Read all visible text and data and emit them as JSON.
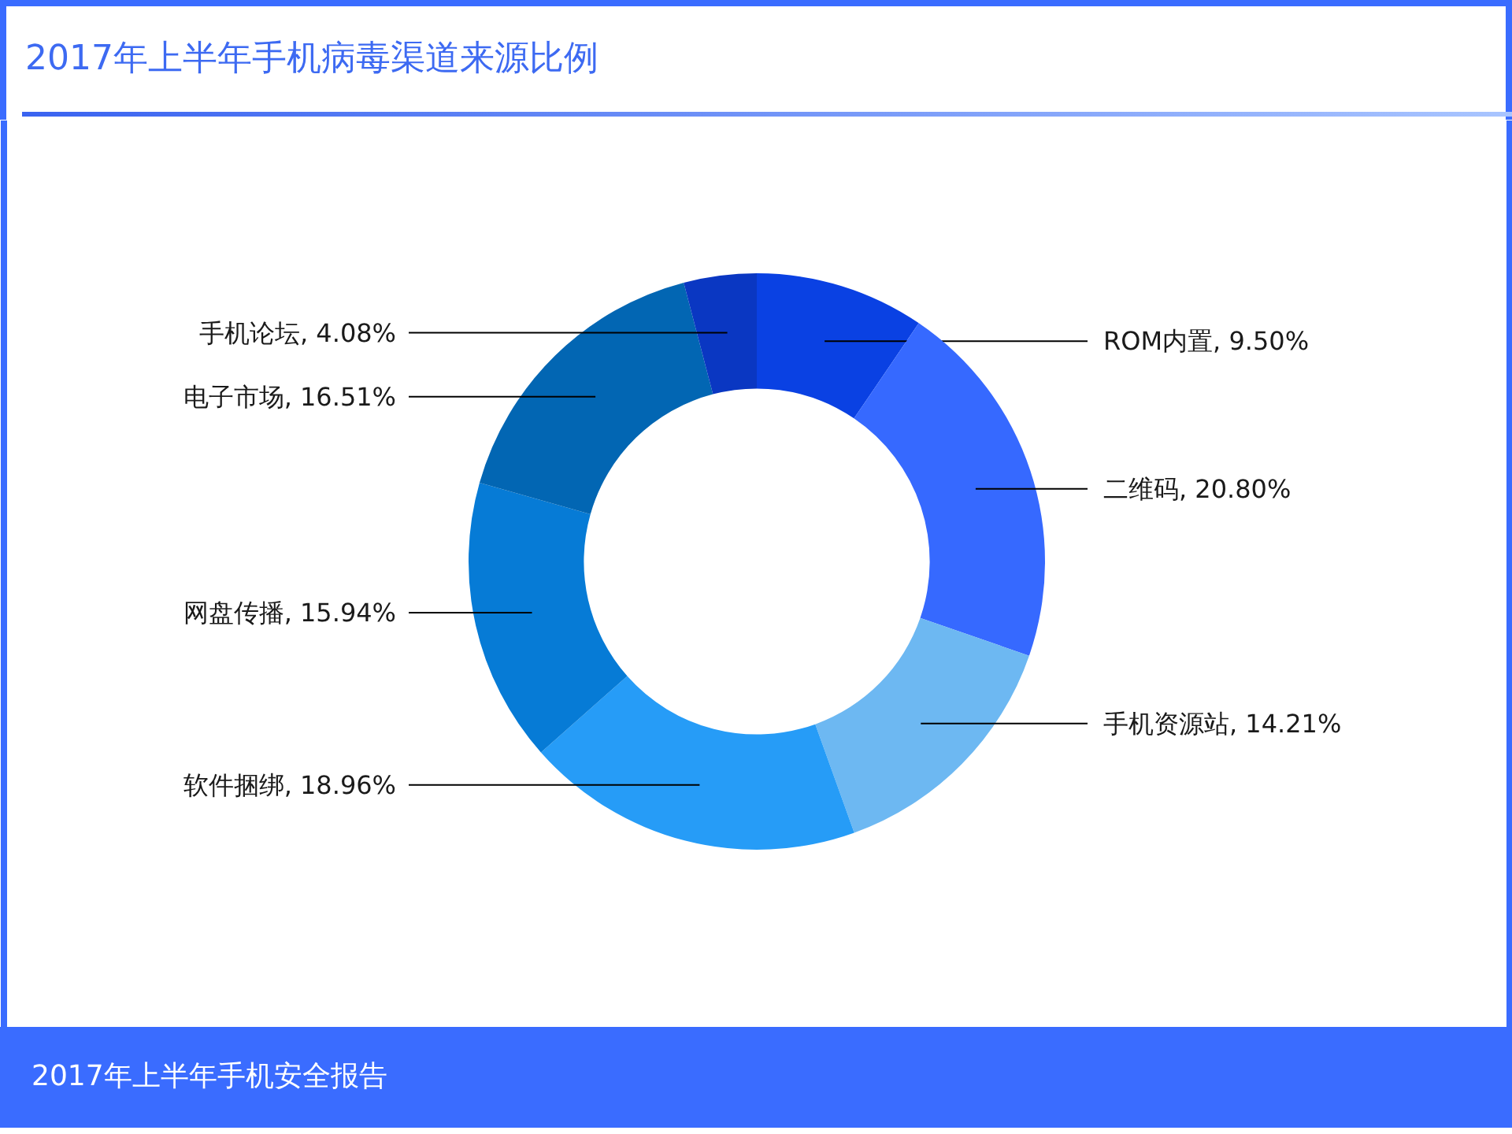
{
  "chart_data": {
    "type": "donut",
    "title": "2017年上半年手机病毒渠道来源比例",
    "categories": [
      "ROM内置",
      "二维码",
      "手机资源站",
      "软件捆绑",
      "网盘传播",
      "电子市场",
      "手机论坛"
    ],
    "values": [
      9.5,
      20.8,
      14.21,
      18.96,
      15.94,
      16.51,
      4.08
    ],
    "colors": [
      "#0a41e3",
      "#3669ff",
      "#6db8f2",
      "#269cf7",
      "#067bd6",
      "#0266b3",
      "#0a37c2"
    ],
    "value_labels": [
      "9.50%",
      "20.80%",
      "14.21%",
      "18.96%",
      "15.94%",
      "16.51%",
      "4.08%"
    ],
    "annotations": [
      "2017年上半年手机安全报告"
    ]
  }
}
